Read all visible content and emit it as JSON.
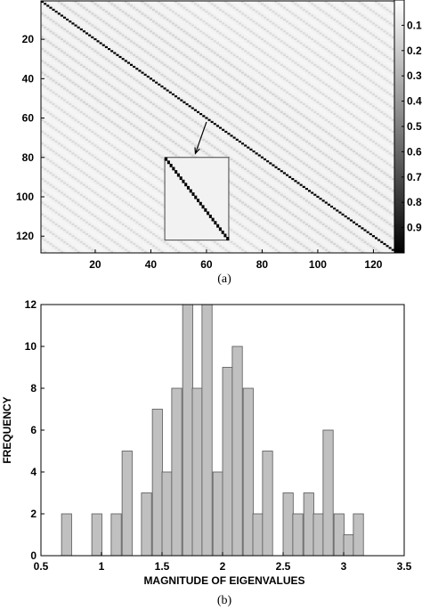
{
  "chart_data": [
    {
      "type": "heatmap",
      "caption": "(a)",
      "matrix_size": 128,
      "xlim": [
        1,
        128
      ],
      "ylim": [
        1,
        128
      ],
      "y_reversed": true,
      "xticks": [
        20,
        40,
        60,
        80,
        100,
        120
      ],
      "yticks": [
        20,
        40,
        60,
        80,
        100,
        120
      ],
      "colorbar": {
        "ticks": [
          "0.1",
          "0.2",
          "0.3",
          "0.4",
          "0.5",
          "0.6",
          "0.7",
          "0.8",
          "0.9"
        ],
        "range": [
          0,
          1
        ],
        "colormap": "gray, reversed (0 = white, 1 = black)"
      },
      "description_values": {
        "diagonal": 1.0,
        "off_diagonal_typical": 0.08,
        "off_diagonal_band_max": 0.25
      },
      "inset": {
        "shows": "zoom of diagonal",
        "x_range": [
          45,
          68
        ],
        "y_range": [
          80,
          122
        ],
        "arrow_from": [
          60,
          62
        ],
        "arrow_to": [
          56,
          78
        ]
      }
    },
    {
      "type": "bar",
      "subtype": "histogram",
      "caption": "(b)",
      "xlabel": "MAGNITUDE OF EIGENVALUES",
      "ylabel": "FREQUENCY",
      "xlim": [
        0.5,
        3.5
      ],
      "ylim": [
        0,
        12
      ],
      "xticks": [
        "0.5",
        "1",
        "1.5",
        "2",
        "2.5",
        "3",
        "3.5"
      ],
      "yticks": [
        "0",
        "2",
        "4",
        "6",
        "8",
        "10",
        "12"
      ],
      "bin_width": 0.0833,
      "bin_left_edges": [
        0.67,
        0.75,
        0.83,
        0.92,
        1.0,
        1.08,
        1.17,
        1.25,
        1.33,
        1.42,
        1.5,
        1.58,
        1.67,
        1.75,
        1.83,
        1.92,
        2.0,
        2.08,
        2.17,
        2.25,
        2.33,
        2.42,
        2.5,
        2.58,
        2.67,
        2.75,
        2.83,
        2.92,
        3.0,
        3.08,
        3.17,
        3.25
      ],
      "values": [
        2,
        0,
        0,
        2,
        0,
        2,
        5,
        0,
        3,
        7,
        4,
        8,
        12,
        8,
        12,
        4,
        9,
        10,
        8,
        2,
        5,
        0,
        3,
        2,
        3,
        2,
        6,
        2,
        1,
        2,
        0,
        0
      ],
      "bar_color": "#c0c0c0",
      "edge_color": "#555555"
    }
  ]
}
